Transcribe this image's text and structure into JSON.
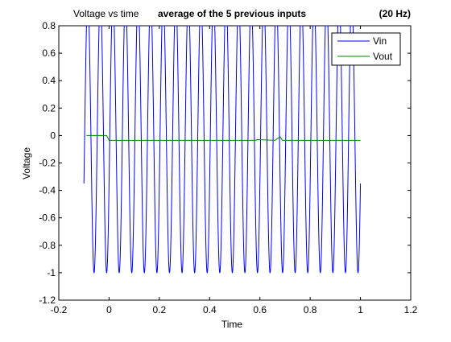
{
  "chart_data": {
    "type": "line",
    "title": "Voltage vs time",
    "title_annotation": "average of the 5 previous inputs",
    "title_frequency": "(20 Hz)",
    "xlabel": "Time",
    "ylabel": "Voltage",
    "xlim": [
      -0.2,
      1.2
    ],
    "ylim": [
      -1.2,
      0.8
    ],
    "xticks": [
      -0.2,
      0,
      0.2,
      0.4,
      0.6,
      0.8,
      1,
      1.2
    ],
    "xtick_labels": [
      "-0.2",
      "0",
      "0.2",
      "0.4",
      "0.6",
      "0.8",
      "1",
      "1.2"
    ],
    "yticks": [
      -1.2,
      -1,
      -0.8,
      -0.6,
      -0.4,
      -0.2,
      0,
      0.2,
      0.4,
      0.6,
      0.8
    ],
    "ytick_labels": [
      "-1.2",
      "-1",
      "-0.8",
      "-0.6",
      "-0.4",
      "-0.2",
      "0",
      "0.2",
      "0.4",
      "0.6",
      "0.8"
    ],
    "grid": false,
    "legend_position": "top-right",
    "series": [
      {
        "name": "Vin",
        "color": "#0000ff",
        "description": "sine-like, period ~0.05 s (20 Hz), clipped at +0.8, min -1, from t=-0.1 to t=1",
        "t_start": -0.1,
        "t_end": 1.0,
        "period": 0.05,
        "amplitude": 1.0,
        "phase_start_value": -0.35,
        "clip_max": 0.8
      },
      {
        "name": "Vout",
        "color": "#008000",
        "x": [
          -0.09,
          -0.01,
          0.0,
          0.58,
          0.59,
          0.66,
          0.68,
          0.69,
          1.0
        ],
        "y": [
          0.0,
          0.0,
          -0.035,
          -0.035,
          -0.03,
          -0.035,
          -0.01,
          -0.035,
          -0.035
        ]
      }
    ]
  }
}
